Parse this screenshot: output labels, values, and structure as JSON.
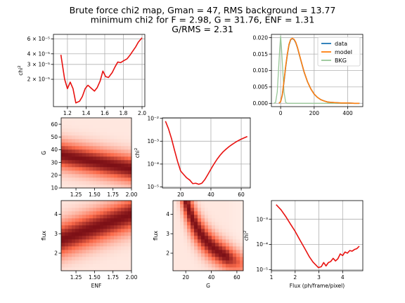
{
  "figure": {
    "title_lines": [
      "Brute force chi2 map, Gman = 47, RMS background = 13.77",
      "minimum chi2 for F = 2.98, G = 31.76, ENF = 1.31",
      "G/RMS = 2.31"
    ]
  },
  "colors": {
    "red_line": "#e8110f",
    "data": "#1f77b4",
    "model": "#ff7f0e",
    "bkg": "#98c798",
    "grid": "#b0b0b0",
    "heat_low": "#fff5f0",
    "heat_mid": "#fb6a4a",
    "heat_high": "#67000d"
  },
  "chart_data": [
    {
      "id": "chi2_vs_enf",
      "type": "line",
      "scale_y": "log",
      "ylabel": "chi$^2$",
      "x": [
        1.13,
        1.17,
        1.2,
        1.23,
        1.26,
        1.29,
        1.33,
        1.36,
        1.39,
        1.42,
        1.46,
        1.49,
        1.52,
        1.55,
        1.58,
        1.61,
        1.64,
        1.68,
        1.71,
        1.74,
        1.77,
        1.8,
        1.84,
        1.87,
        1.9,
        1.93,
        1.96,
        2.0
      ],
      "y": [
        3.9e-05,
        2e-05,
        1.55e-05,
        1.85e-05,
        1.55e-05,
        1.05e-05,
        1.1e-05,
        1.25e-05,
        1.55e-05,
        1.7e-05,
        1.55e-05,
        1.45e-05,
        1.6e-05,
        1.9e-05,
        2.5e-05,
        2.15e-05,
        2.1e-05,
        2.4e-05,
        2.8e-05,
        3.2e-05,
        3.15e-05,
        3.3e-05,
        3.5e-05,
        3.85e-05,
        4.3e-05,
        4.8e-05,
        5.5e-05,
        6.2e-05
      ],
      "xlim": [
        1.05,
        2.03
      ],
      "ylim": [
        9.5e-06,
        6.8e-05
      ],
      "xticks": [
        1.2,
        1.4,
        1.6,
        1.8,
        2.0
      ],
      "xtick_labels": [
        "1.2",
        "1.4",
        "1.6",
        "1.8",
        "2.0"
      ],
      "yticks": [
        6e-05,
        4e-05,
        3e-05,
        2e-05
      ],
      "ytick_labels": [
        "6 × 10⁻⁵",
        "4 × 10⁻⁵",
        "3 × 10⁻⁵",
        "2 × 10⁻⁵"
      ],
      "grid": true
    },
    {
      "id": "histogram_fit",
      "type": "line",
      "xlim": [
        -55,
        490
      ],
      "ylim": [
        -0.001,
        0.021
      ],
      "xticks": [
        0,
        200,
        400
      ],
      "xtick_labels": [
        "0",
        "200",
        "400"
      ],
      "yticks": [
        0.0,
        0.005,
        0.01,
        0.015,
        0.02
      ],
      "ytick_labels": [
        "0.000",
        "0.005",
        "0.010",
        "0.015",
        "0.020"
      ],
      "legend_position": "top-right",
      "grid": true,
      "series": [
        {
          "name": "data",
          "x": [
            -10,
            0,
            10,
            20,
            30,
            40,
            50,
            60,
            70,
            80,
            90,
            100,
            120,
            140,
            160,
            180,
            200,
            220,
            240,
            260,
            280,
            300,
            330,
            360,
            400,
            440,
            470
          ],
          "y": [
            0.0,
            0.0005,
            0.0025,
            0.0065,
            0.011,
            0.0148,
            0.0178,
            0.0194,
            0.0197,
            0.0194,
            0.0185,
            0.017,
            0.0132,
            0.0095,
            0.0066,
            0.0044,
            0.0028,
            0.0018,
            0.0011,
            0.0007,
            0.0004,
            0.0003,
            0.0002,
            0.0001,
            0.0001,
            0.0,
            0.0
          ]
        },
        {
          "name": "model",
          "x": [
            -10,
            0,
            10,
            20,
            30,
            40,
            50,
            60,
            70,
            80,
            90,
            100,
            120,
            140,
            160,
            180,
            200,
            220,
            240,
            260,
            280,
            300,
            330,
            360,
            400,
            440,
            470
          ],
          "y": [
            0.0,
            0.0005,
            0.0026,
            0.0068,
            0.0113,
            0.015,
            0.018,
            0.0195,
            0.0198,
            0.0195,
            0.0186,
            0.0171,
            0.0133,
            0.0096,
            0.0066,
            0.0044,
            0.0028,
            0.0018,
            0.0011,
            0.0007,
            0.0004,
            0.0003,
            0.0002,
            0.0001,
            0.0001,
            0.0,
            0.0
          ]
        },
        {
          "name": "BKG",
          "x": [
            -40,
            -30,
            -20,
            -10,
            -5,
            0,
            5,
            10,
            20,
            30,
            40,
            60,
            100,
            200,
            470
          ],
          "y": [
            0.0,
            0.0003,
            0.0035,
            0.0125,
            0.017,
            0.0205,
            0.017,
            0.0125,
            0.0035,
            0.0003,
            0.0,
            0.0,
            0.0,
            0.0,
            0.0
          ]
        }
      ]
    },
    {
      "id": "heatmap_G_vs_ENF",
      "type": "heatmap",
      "ylabel": "G",
      "xlim": [
        1.05,
        2.0
      ],
      "ylim": [
        10,
        65
      ],
      "xticks": [
        1.25,
        1.5,
        1.75,
        2.0
      ],
      "xtick_labels": [
        "1.25",
        "1.50",
        "1.75",
        "2.00"
      ],
      "yticks": [
        10,
        20,
        30,
        40,
        50,
        60
      ],
      "ytick_labels": [
        "10",
        "20",
        "30",
        "40",
        "50",
        "60"
      ],
      "valley": {
        "x": [
          1.05,
          2.0
        ],
        "y": [
          36,
          25
        ],
        "width": 8
      }
    },
    {
      "id": "chi2_vs_G",
      "type": "line",
      "scale_y": "log",
      "ylabel": "chi$^2$",
      "x": [
        10,
        12,
        14,
        16,
        18,
        20,
        22,
        24,
        26,
        28,
        30,
        32,
        34,
        36,
        38,
        40,
        42,
        44,
        46,
        48,
        50,
        52,
        54,
        56,
        58,
        60,
        62,
        64
      ],
      "y": [
        0.0075,
        0.0035,
        0.0013,
        0.0004,
        0.00013,
        5e-05,
        3.5e-05,
        2.5e-05,
        2e-05,
        1.4e-05,
        1.45e-05,
        1.3e-05,
        1.45e-05,
        2.1e-05,
        3.5e-05,
        6e-05,
        0.0001,
        0.00016,
        0.00024,
        0.00034,
        0.00045,
        0.00058,
        0.00072,
        0.00088,
        0.00105,
        0.00123,
        0.0014,
        0.0016
      ],
      "xlim": [
        8,
        66
      ],
      "ylim": [
        9e-06,
        0.0105
      ],
      "xticks": [
        20,
        40,
        60
      ],
      "xtick_labels": [
        "20",
        "40",
        "60"
      ],
      "yticks": [
        0.01,
        0.001,
        0.0001,
        1e-05
      ],
      "ytick_labels": [
        "10⁻²",
        "10⁻³",
        "10⁻⁴",
        "10⁻⁵"
      ],
      "grid": true
    },
    {
      "id": "heatmap_flux_vs_ENF",
      "type": "heatmap",
      "xlabel": "ENF",
      "ylabel": "flux",
      "xlim": [
        1.05,
        2.0
      ],
      "ylim": [
        1.1,
        4.7
      ],
      "xticks": [
        1.25,
        1.5,
        1.75,
        2.0
      ],
      "xtick_labels": [
        "1.25",
        "1.50",
        "1.75",
        "2.00"
      ],
      "yticks": [
        2,
        3,
        4
      ],
      "ytick_labels": [
        "2",
        "3",
        "4"
      ],
      "valley": {
        "x": [
          1.05,
          2.0
        ],
        "y": [
          2.7,
          4.0
        ],
        "width": 0.65
      }
    },
    {
      "id": "heatmap_flux_vs_G",
      "type": "heatmap",
      "xlabel": "G",
      "ylabel": "flux",
      "xlim": [
        10,
        65
      ],
      "ylim": [
        1.1,
        4.7
      ],
      "xticks": [
        20,
        40,
        60
      ],
      "xtick_labels": [
        "20",
        "40",
        "60"
      ],
      "yticks": [
        2,
        3,
        4
      ],
      "ytick_labels": [
        "2",
        "3",
        "4"
      ],
      "valley": {
        "curve": "flux = 95 / G",
        "width": 0.55
      }
    },
    {
      "id": "chi2_vs_flux",
      "type": "line",
      "scale_y": "log",
      "xlabel": "Flux (ph/frame/pixel)",
      "ylabel": "chi$^2$",
      "x": [
        1.2,
        1.4,
        1.6,
        1.8,
        2.0,
        2.2,
        2.4,
        2.6,
        2.75,
        2.85,
        2.98,
        3.1,
        3.2,
        3.3,
        3.4,
        3.5,
        3.6,
        3.7,
        3.8,
        3.9,
        4.0,
        4.1,
        4.2,
        4.3,
        4.4,
        4.5,
        4.6,
        4.7
      ],
      "y": [
        0.0038,
        0.0024,
        0.0013,
        0.00065,
        0.00033,
        0.00015,
        7e-05,
        3.2e-05,
        2e-05,
        1.6e-05,
        1.2e-05,
        1.3e-05,
        1.9e-05,
        1.4e-05,
        1.9e-05,
        2.1e-05,
        2.8e-05,
        2.2e-05,
        2.7e-05,
        4.2e-05,
        3.6e-05,
        5e-05,
        4.5e-05,
        5.7e-05,
        5.4e-05,
        6.3e-05,
        6.8e-05,
        8.5e-05
      ],
      "xlim": [
        1.0,
        4.85
      ],
      "ylim": [
        9e-06,
        0.0055
      ],
      "xticks": [
        1,
        2,
        3,
        4
      ],
      "xtick_labels": [
        "1",
        "2",
        "3",
        "4"
      ],
      "yticks": [
        0.001,
        0.0001,
        1e-05
      ],
      "ytick_labels": [
        "10⁻³",
        "10⁻⁴",
        "10⁻⁵"
      ],
      "grid": true
    }
  ]
}
